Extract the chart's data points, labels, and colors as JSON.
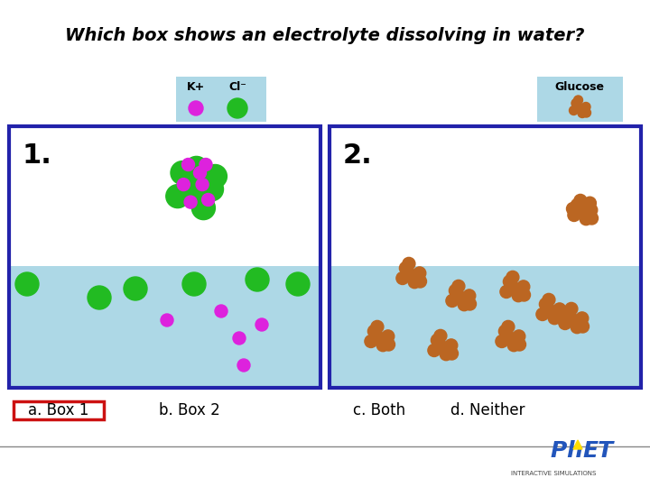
{
  "title": "Which box shows an electrolyte dissolving in water?",
  "title_fontsize": 14,
  "title_style": "italic",
  "title_weight": "bold",
  "bg_color": "#ffffff",
  "water_color": "#add8e6",
  "box_border": "#2222aa",
  "legend_bg": "#add8e6",
  "k_plus_color": "#dd22dd",
  "cl_minus_color": "#22bb22",
  "glucose_color": "#bb6622",
  "answer_border": "#cc1111",
  "legend_k_label": "K+",
  "legend_cl_label": "Cl⁻",
  "legend_glucose_label": "Glucose",
  "answer_a": "a. Box 1",
  "answer_b": "b. Box 2",
  "answer_c": "c. Both",
  "answer_d": "d. Neither",
  "box1_label": "1.",
  "box2_label": "2."
}
